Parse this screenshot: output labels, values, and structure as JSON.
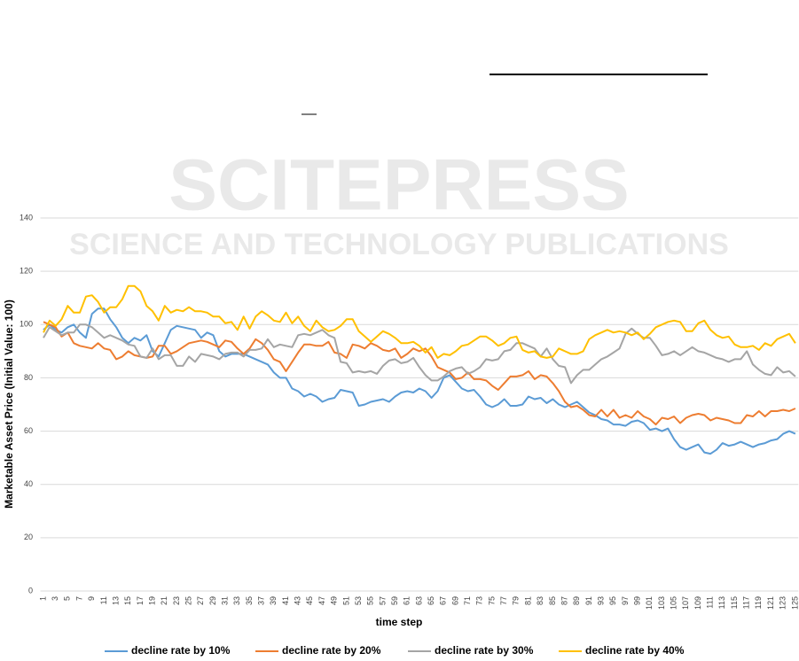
{
  "watermark": {
    "title": "SCITEPRESS",
    "subtitle": "SCIENCE AND TECHNOLOGY PUBLICATIONS"
  },
  "chart_data": {
    "type": "line",
    "x_label": "time step",
    "y_label": "Marketable  Asset Price (Initial Value: 100)",
    "categories": [
      1,
      null,
      3,
      null,
      5,
      null,
      7,
      null,
      9,
      null,
      11,
      null,
      13,
      null,
      15,
      null,
      17,
      null,
      19,
      null,
      21,
      null,
      23,
      null,
      25,
      null,
      27,
      null,
      29,
      null,
      31,
      null,
      33,
      null,
      35,
      null,
      37,
      null,
      39,
      null,
      41,
      null,
      43,
      null,
      45,
      null,
      47,
      null,
      49,
      null,
      51,
      null,
      53,
      null,
      55,
      null,
      57,
      null,
      59,
      null,
      61,
      null,
      63,
      null,
      65,
      null,
      67,
      null,
      69,
      null,
      71,
      null,
      73,
      null,
      75,
      null,
      77,
      null,
      79,
      null,
      81,
      null,
      83,
      null,
      85,
      null,
      87,
      null,
      89,
      null,
      91,
      null,
      93,
      null,
      95,
      null,
      97,
      null,
      99,
      null,
      101,
      null,
      103,
      null,
      105,
      null,
      107,
      null,
      109,
      null,
      111,
      null,
      113,
      null,
      115,
      null,
      117,
      null,
      119,
      null,
      121,
      null,
      123,
      null,
      125
    ],
    "ylim": [
      0,
      140
    ],
    "yticks": [
      0,
      20,
      40,
      60,
      80,
      100,
      120,
      140
    ],
    "grid": true,
    "legend": "bottom",
    "series": [
      {
        "name": "decline rate by 10%",
        "color": "#5b9bd5",
        "values": [
          98,
          100,
          98,
          97,
          99,
          100,
          97,
          95,
          104,
          106,
          106,
          102,
          99,
          95,
          93,
          95,
          94,
          96,
          90,
          88,
          93,
          98,
          99.5,
          99,
          98.5,
          98,
          95,
          97,
          96,
          90,
          88,
          89,
          89,
          89,
          88,
          87,
          86,
          85,
          82,
          80,
          80,
          76,
          75,
          73,
          74,
          73,
          71,
          72,
          72.5,
          75.5,
          75,
          74.5,
          69.5,
          70,
          71,
          71.5,
          72,
          71,
          73,
          74.5,
          75,
          74.5,
          76,
          75,
          72.5,
          75,
          80,
          81,
          78.5,
          76,
          75,
          75.5,
          73,
          70,
          69,
          70,
          72,
          69.5,
          69.5,
          70,
          73,
          72,
          72.5,
          70.5,
          72,
          70,
          69,
          70,
          71,
          69,
          67,
          66,
          64.5,
          64,
          62.5,
          62.5,
          62,
          63.5,
          64,
          63,
          60.5,
          61,
          60,
          61,
          57,
          54,
          53,
          54,
          55,
          52,
          51.5,
          53,
          55.5,
          54.5,
          55,
          56,
          55,
          54,
          55,
          55.5,
          56.5,
          57,
          59,
          60,
          59
        ]
      },
      {
        "name": "decline rate by 20%",
        "color": "#ed7d31",
        "values": [
          101,
          100,
          99,
          95.5,
          97,
          93,
          92,
          91.5,
          91,
          93,
          91,
          90.5,
          87,
          88,
          90,
          88.5,
          88,
          87.5,
          88,
          92,
          92,
          89,
          90,
          91.5,
          93,
          93.5,
          94,
          93.5,
          92.5,
          91.5,
          94,
          93.5,
          91,
          89,
          91,
          94.5,
          93,
          90.5,
          87,
          86,
          82.5,
          86,
          89.5,
          92.5,
          92.5,
          92,
          92,
          93.5,
          89.5,
          89,
          87.5,
          92.5,
          92,
          91,
          93,
          92,
          90.5,
          90,
          91,
          87.5,
          89,
          91,
          90,
          91,
          88,
          84,
          83,
          82,
          79.5,
          80,
          82,
          79.5,
          79.5,
          79,
          77,
          75.5,
          78,
          80.5,
          80.5,
          81,
          82.5,
          79.5,
          81,
          80.5,
          78,
          75,
          71,
          69,
          69.5,
          68,
          66,
          65.5,
          68,
          65.5,
          68,
          65,
          66,
          65,
          67.5,
          65.5,
          64.5,
          62.5,
          65,
          64.5,
          65.5,
          63,
          65,
          66,
          66.5,
          66,
          64,
          65,
          64.5,
          64,
          63,
          63,
          66,
          65.5,
          67.5,
          65.5,
          67.5,
          67.5,
          68,
          67.5,
          68.5
        ]
      },
      {
        "name": "decline rate by 30%",
        "color": "#a5a5a5",
        "values": [
          95,
          99,
          97.5,
          96,
          97,
          97,
          100,
          100,
          99,
          97,
          95,
          96,
          95,
          94,
          92.5,
          92,
          88,
          87.5,
          91,
          87,
          88.5,
          88.5,
          84.5,
          84.5,
          88,
          86,
          89,
          88.5,
          88,
          87,
          89,
          89.5,
          89.5,
          88,
          90.5,
          90.5,
          91,
          94.5,
          91.5,
          92.5,
          92,
          91.5,
          96,
          96.5,
          96,
          97,
          98,
          96,
          95,
          86,
          85.5,
          82,
          82.5,
          82,
          82.5,
          81.5,
          84.5,
          86.5,
          87,
          85.5,
          86,
          87.5,
          84,
          81,
          79,
          79,
          80.5,
          82.5,
          83.5,
          84,
          81.5,
          82.5,
          84,
          87,
          86.5,
          87,
          90,
          90.5,
          93,
          93,
          92,
          91,
          88,
          91,
          87,
          84.5,
          84,
          78,
          81,
          83,
          83,
          85,
          87,
          88,
          89.5,
          91,
          96.5,
          98.5,
          96.5,
          95,
          95,
          92,
          88.5,
          89,
          90,
          88.5,
          90,
          91.5,
          90,
          89.5,
          88.5,
          87.5,
          87,
          86,
          87,
          87,
          90,
          85,
          83,
          81.5,
          81,
          84,
          82,
          82.5,
          80.5
        ]
      },
      {
        "name": "decline rate by 40%",
        "color": "#ffc000",
        "values": [
          97,
          101.5,
          99.5,
          102,
          107,
          104.5,
          104.5,
          110.5,
          111,
          108.5,
          104.5,
          106.5,
          106.5,
          109.5,
          114.5,
          114.5,
          112.5,
          107,
          105,
          101.5,
          107,
          104.5,
          105.5,
          105,
          106.5,
          105,
          105,
          104.5,
          103,
          103,
          100.5,
          101,
          98,
          103,
          98.5,
          103,
          105,
          103.5,
          101.5,
          101,
          104.5,
          100.5,
          103,
          99.5,
          97.5,
          101.5,
          99,
          97.5,
          98,
          99.5,
          102,
          102,
          97.5,
          95.5,
          93.5,
          95.5,
          97.5,
          96.5,
          95,
          93,
          93,
          93.5,
          92,
          89.5,
          91.5,
          87.5,
          89,
          88.5,
          90,
          92,
          92.5,
          94,
          95.5,
          95.5,
          94,
          92,
          93,
          95,
          95.5,
          90.5,
          89.5,
          90,
          88,
          87.5,
          88,
          91,
          90,
          89,
          89,
          90,
          94.5,
          96,
          97,
          98,
          97,
          97.5,
          97,
          96,
          97,
          94.5,
          96.5,
          99,
          100,
          101,
          101.5,
          101,
          97.5,
          97.5,
          100.5,
          101.5,
          98,
          96,
          95,
          95.5,
          92.5,
          91.5,
          91.5,
          92,
          90.5,
          93,
          92,
          94.5,
          95.5,
          96.5,
          93
        ]
      }
    ]
  }
}
